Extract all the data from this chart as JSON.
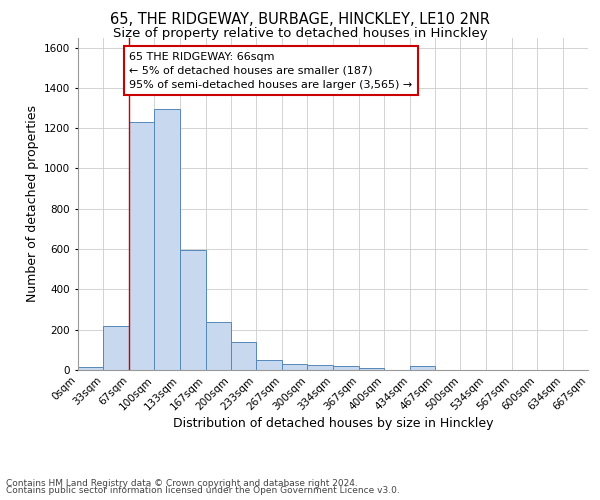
{
  "title_line1": "65, THE RIDGEWAY, BURBAGE, HINCKLEY, LE10 2NR",
  "title_line2": "Size of property relative to detached houses in Hinckley",
  "xlabel": "Distribution of detached houses by size in Hinckley",
  "ylabel": "Number of detached properties",
  "bar_color": "#c8d8ee",
  "bar_edge_color": "#5588bb",
  "grid_color": "#cccccc",
  "background_color": "#ffffff",
  "annotation_box_color": "#cc0000",
  "annotation_text": "65 THE RIDGEWAY: 66sqm\n← 5% of detached houses are smaller (187)\n95% of semi-detached houses are larger (3,565) →",
  "property_line_x": 67,
  "property_line_color": "#cc0000",
  "bin_edges": [
    0,
    33,
    67,
    100,
    133,
    167,
    200,
    233,
    267,
    300,
    334,
    367,
    400,
    434,
    467,
    500,
    534,
    567,
    600,
    634,
    667
  ],
  "bin_values": [
    15,
    220,
    1230,
    1295,
    595,
    240,
    140,
    52,
    28,
    26,
    18,
    12,
    0,
    18,
    0,
    0,
    0,
    0,
    0,
    0
  ],
  "ylim": [
    0,
    1650
  ],
  "xlim": [
    0,
    667
  ],
  "footnote_line1": "Contains HM Land Registry data © Crown copyright and database right 2024.",
  "footnote_line2": "Contains public sector information licensed under the Open Government Licence v3.0.",
  "title_fontsize": 10.5,
  "subtitle_fontsize": 9.5,
  "axis_label_fontsize": 9,
  "tick_fontsize": 7.5,
  "annotation_fontsize": 8,
  "footnote_fontsize": 6.5
}
